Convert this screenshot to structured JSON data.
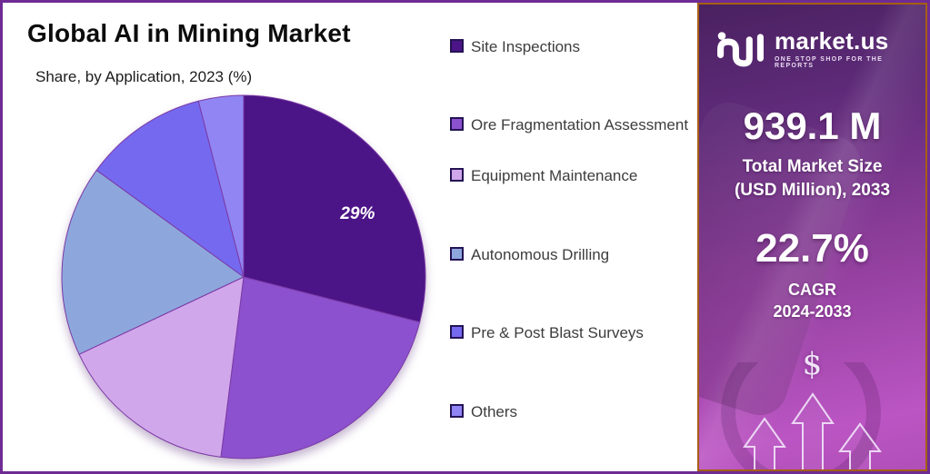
{
  "page": {
    "border_color": "#6f2b94",
    "background": "#ffffff"
  },
  "header": {
    "title": "Global AI in Mining Market",
    "subtitle": "Share, by Application, 2023 (%)"
  },
  "chart_data": {
    "type": "pie",
    "title": "Global AI in Mining Market",
    "subtitle": "Share, by Application, 2023 (%)",
    "categories": [
      "Site Inspections",
      "Ore Fragmentation Assessment",
      "Equipment Maintenance",
      "Autonomous Drilling",
      "Pre & Post Blast Surveys",
      "Others"
    ],
    "values": [
      29,
      23,
      16,
      17,
      11,
      4
    ],
    "colors": [
      "#4b1487",
      "#8c51ce",
      "#d1a7eb",
      "#8da7dd",
      "#7569f0",
      "#9085f3"
    ],
    "slice_border_color": "#7b3aa5",
    "start_angle_deg": 0,
    "direction": "clockwise",
    "data_labels": [
      {
        "slice_index": 0,
        "text": "29%"
      }
    ],
    "legend_position": "right"
  },
  "sidebar": {
    "logo": {
      "brand": "market.us",
      "tagline": "ONE STOP SHOP FOR THE REPORTS",
      "mark": "market-us-logo-mark"
    },
    "market_size": {
      "value": "939.1 M",
      "label_line1": "Total Market Size",
      "label_line2": "(USD Million), 2033"
    },
    "cagr": {
      "value": "22.7%",
      "label_line1": "CAGR",
      "label_line2": "2024-2033"
    },
    "dollar_icon": "$",
    "colors": {
      "bg_top": "#4a2160",
      "bg_mid": "#93409f",
      "bg_bottom": "#bb55c3",
      "border": "#a65e14",
      "text": "#ffffff"
    }
  }
}
